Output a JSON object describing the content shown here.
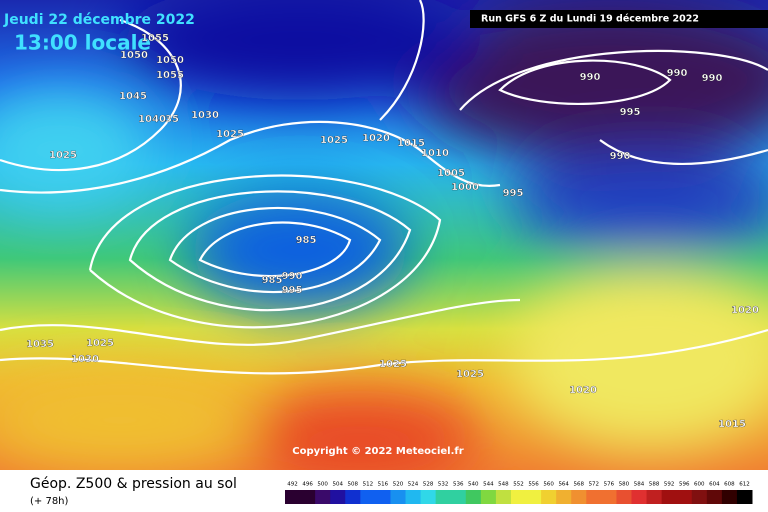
{
  "header": {
    "date": "Jeudi 22 décembre 2022",
    "time": "13:00 locale",
    "run": "Run GFS 6 Z du Lundi 19 décembre 2022"
  },
  "copyright": "Copyright © 2022 Meteociel.fr",
  "footer": {
    "title": "Géop. Z500 & pression au sol",
    "lead": "(+ 78h)"
  },
  "isobar_labels": [
    "1055",
    "1050",
    "1050",
    "1055",
    "1045",
    "1040",
    "35",
    "1030",
    "1025",
    "1025",
    "1025",
    "1020",
    "1015",
    "1010",
    "1005",
    "1000",
    "995",
    "990",
    "990",
    "990",
    "995",
    "990",
    "985",
    "985",
    "990",
    "995",
    "1035",
    "1025",
    "1030",
    "1025",
    "1025",
    "1020",
    "1020",
    "1015"
  ],
  "colorbar": {
    "ticks": [
      492,
      496,
      500,
      504,
      508,
      512,
      516,
      520,
      524,
      528,
      532,
      536,
      540,
      544,
      548,
      552,
      556,
      560,
      564,
      568,
      572,
      576,
      580,
      584,
      588,
      592,
      596,
      600,
      604,
      608,
      612
    ]
  }
}
